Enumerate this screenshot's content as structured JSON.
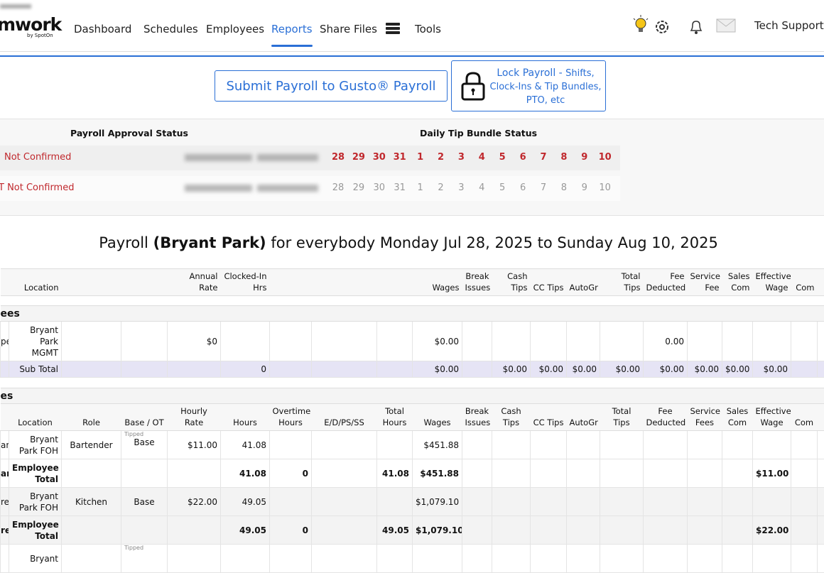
{
  "nav": {
    "brand": "mwork",
    "brand_sub": "by SpotOn",
    "items": [
      "Dashboard",
      "Schedules",
      "Employees",
      "Reports",
      "Share Files",
      "Tools"
    ],
    "active": 3,
    "right": "Tech Support"
  },
  "actions": {
    "submit": "Submit Payroll to Gusto® Payroll",
    "lock_title": "Lock Payroll - ",
    "lock_detail": "Shifts, Clock-Ins & Tip Bundles, PTO, etc"
  },
  "status": {
    "approval_header": "Payroll Approval Status",
    "tip_header": "Daily Tip Bundle Status",
    "rows": [
      {
        "approval": "Not Confirmed",
        "days": [
          28,
          29,
          30,
          31,
          1,
          2,
          3,
          4,
          5,
          6,
          7,
          8,
          9,
          10
        ]
      },
      {
        "approval": "T Not Confirmed",
        "days": [
          28,
          29,
          30,
          31,
          1,
          2,
          3,
          4,
          5,
          6,
          7,
          8,
          9,
          10
        ]
      }
    ]
  },
  "payroll": {
    "title_prefix": "Payroll",
    "location": "(Bryant Park)",
    "title_suffix": "for everybody Monday Jul 28, 2025 to Sunday Aug 10, 2025"
  },
  "salaried": {
    "header": [
      null,
      "Location",
      null,
      null,
      "Annual Rate",
      "Clocked-In Hrs",
      null,
      null,
      null,
      "Wages",
      "Break Issues",
      "Cash Tips",
      "CC Tips",
      "AutoGr",
      "Total Tips",
      "Fee Deducted",
      "Service Fee",
      "Sales Com",
      "Effective Wage",
      "Com",
      null
    ],
    "section": "ees",
    "rows": [
      {
        "kind": "row",
        "cells": [
          "pe",
          "Bryant Park MGMT",
          null,
          null,
          "$0",
          null,
          null,
          null,
          null,
          "$0.00",
          null,
          null,
          null,
          null,
          null,
          "0.00",
          null,
          null,
          null,
          null,
          null
        ]
      },
      {
        "kind": "subtotal",
        "cells": [
          null,
          "Sub Total",
          null,
          null,
          null,
          "0",
          null,
          null,
          null,
          "$0.00",
          null,
          "$0.00",
          "$0.00",
          "$0.00",
          "$0.00",
          "$0.00",
          "$0.00",
          "$0.00",
          "$0.00",
          null,
          null
        ]
      }
    ]
  },
  "hourly": {
    "section": "es",
    "header": [
      null,
      "Location",
      "Role",
      "Base / OT",
      "Hourly Rate",
      "Hours",
      "Overtime Hours",
      "E/D/PS/SS",
      "Total Hours",
      "Wages",
      "Break Issues",
      "Cash Tips",
      "CC Tips",
      "AutoGr",
      "Total Tips",
      "Fee Deducted",
      "Service Fees",
      "Sales Com",
      "Effective Wage",
      "Com",
      null
    ],
    "rows": [
      {
        "kind": "row",
        "cells": [
          "an",
          "Bryant Park FOH",
          "Bartender",
          {
            "tag": "Tipped",
            "text": "Base"
          },
          "$11.00",
          "41.08",
          null,
          null,
          null,
          "$451.88",
          null,
          null,
          null,
          null,
          null,
          null,
          null,
          null,
          null,
          null,
          null
        ]
      },
      {
        "kind": "total",
        "cells": [
          "an",
          "Employee Total",
          null,
          null,
          null,
          "41.08",
          "0",
          null,
          "41.08",
          "$451.88",
          null,
          null,
          null,
          null,
          null,
          null,
          null,
          null,
          "$11.00",
          null,
          null
        ]
      },
      {
        "kind": "row",
        "cells": [
          "re",
          "Bryant Park FOH",
          "Kitchen",
          "Base",
          "$22.00",
          "49.05",
          null,
          null,
          null,
          "$1,079.10",
          null,
          null,
          null,
          null,
          null,
          null,
          null,
          null,
          null,
          null,
          null
        ]
      },
      {
        "kind": "total",
        "cells": [
          "re",
          "Employee Total",
          null,
          null,
          null,
          "49.05",
          "0",
          null,
          "49.05",
          "$1,079.10",
          null,
          null,
          null,
          null,
          null,
          null,
          null,
          null,
          "$22.00",
          null,
          null
        ]
      },
      {
        "kind": "row",
        "cells": [
          null,
          "Bryant",
          null,
          {
            "tag": "Tipped"
          },
          null,
          null,
          null,
          null,
          null,
          null,
          null,
          null,
          null,
          null,
          null,
          null,
          null,
          null,
          null,
          null,
          null
        ]
      }
    ]
  }
}
